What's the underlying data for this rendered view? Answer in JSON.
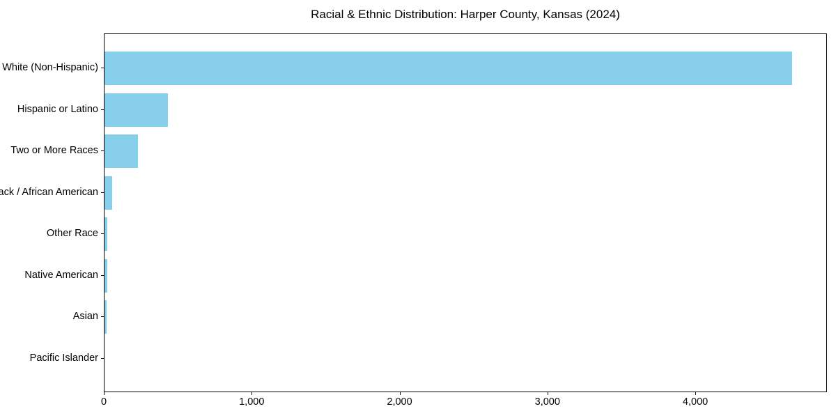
{
  "chart_data": {
    "type": "bar",
    "orientation": "horizontal",
    "title": "Racial & Ethnic Distribution: Harper County, Kansas (2024)",
    "categories": [
      "White (Non-Hispanic)",
      "Hispanic or Latino",
      "Two or More Races",
      "Black / African American",
      "Other Race",
      "Native American",
      "Asian",
      "Pacific Islander"
    ],
    "values": [
      4650,
      430,
      225,
      50,
      20,
      18,
      15,
      0
    ],
    "xlabel": "",
    "ylabel": "",
    "xlim": [
      0,
      4890
    ],
    "xticks": [
      0,
      1000,
      2000,
      3000,
      4000
    ],
    "xtick_labels": [
      "0",
      "1,000",
      "2,000",
      "3,000",
      "4,000"
    ],
    "bar_color": "#87CEEB",
    "background_color": "#ffffff",
    "axis_color": "#000000",
    "grid": false,
    "legend": null
  }
}
